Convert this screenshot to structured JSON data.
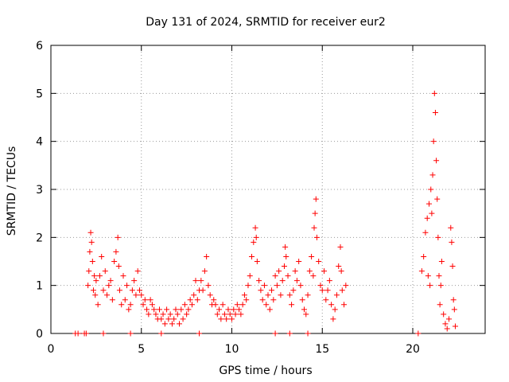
{
  "chart_data": {
    "type": "scatter",
    "title": "Day 131 of 2024, SRMTID for receiver eur2",
    "xlabel": "GPS time / hours",
    "ylabel": "SRMTID / TECUs",
    "xlim": [
      0,
      24
    ],
    "ylim": [
      0,
      6
    ],
    "xticks": [
      0,
      5,
      10,
      15,
      20
    ],
    "yticks": [
      0,
      1,
      2,
      3,
      4,
      5,
      6
    ],
    "grid": true,
    "marker": "+",
    "series": [
      {
        "name": "SRMTID",
        "color": "#ff0000",
        "points": [
          [
            1.35,
            0
          ],
          [
            1.5,
            0
          ],
          [
            1.85,
            0
          ],
          [
            1.95,
            0
          ],
          [
            2.9,
            0
          ],
          [
            4.4,
            0
          ],
          [
            6.1,
            0
          ],
          [
            8.2,
            0
          ],
          [
            12.4,
            0
          ],
          [
            13.2,
            0
          ],
          [
            14.2,
            0
          ],
          [
            20.3,
            0
          ],
          [
            2.05,
            1.0
          ],
          [
            2.1,
            1.3
          ],
          [
            2.15,
            1.7
          ],
          [
            2.2,
            2.1
          ],
          [
            2.25,
            1.9
          ],
          [
            2.3,
            1.5
          ],
          [
            2.35,
            0.9
          ],
          [
            2.4,
            1.2
          ],
          [
            2.45,
            0.8
          ],
          [
            2.5,
            1.1
          ],
          [
            2.6,
            0.6
          ],
          [
            2.7,
            1.2
          ],
          [
            2.8,
            1.6
          ],
          [
            2.9,
            0.9
          ],
          [
            3.0,
            1.3
          ],
          [
            3.1,
            0.8
          ],
          [
            3.2,
            1.0
          ],
          [
            3.3,
            1.1
          ],
          [
            3.4,
            0.7
          ],
          [
            3.5,
            1.5
          ],
          [
            3.6,
            1.7
          ],
          [
            3.7,
            2.0
          ],
          [
            3.75,
            1.4
          ],
          [
            3.8,
            0.9
          ],
          [
            3.9,
            0.6
          ],
          [
            4.0,
            1.2
          ],
          [
            4.1,
            0.7
          ],
          [
            4.2,
            1.0
          ],
          [
            4.3,
            0.5
          ],
          [
            4.4,
            0.6
          ],
          [
            4.5,
            0.9
          ],
          [
            4.6,
            1.1
          ],
          [
            4.7,
            0.8
          ],
          [
            4.8,
            1.3
          ],
          [
            4.9,
            0.9
          ],
          [
            5.0,
            0.8
          ],
          [
            5.1,
            0.6
          ],
          [
            5.2,
            0.7
          ],
          [
            5.3,
            0.5
          ],
          [
            5.4,
            0.4
          ],
          [
            5.5,
            0.7
          ],
          [
            5.6,
            0.6
          ],
          [
            5.7,
            0.5
          ],
          [
            5.8,
            0.4
          ],
          [
            5.9,
            0.3
          ],
          [
            6.0,
            0.5
          ],
          [
            6.1,
            0.3
          ],
          [
            6.2,
            0.4
          ],
          [
            6.3,
            0.2
          ],
          [
            6.4,
            0.5
          ],
          [
            6.5,
            0.3
          ],
          [
            6.6,
            0.4
          ],
          [
            6.7,
            0.2
          ],
          [
            6.8,
            0.3
          ],
          [
            6.9,
            0.5
          ],
          [
            7.0,
            0.4
          ],
          [
            7.1,
            0.2
          ],
          [
            7.2,
            0.5
          ],
          [
            7.3,
            0.3
          ],
          [
            7.4,
            0.6
          ],
          [
            7.5,
            0.4
          ],
          [
            7.6,
            0.5
          ],
          [
            7.7,
            0.7
          ],
          [
            7.8,
            0.6
          ],
          [
            7.9,
            0.8
          ],
          [
            8.0,
            1.1
          ],
          [
            8.1,
            0.7
          ],
          [
            8.2,
            0.9
          ],
          [
            8.3,
            1.1
          ],
          [
            8.4,
            0.9
          ],
          [
            8.5,
            1.3
          ],
          [
            8.6,
            1.6
          ],
          [
            8.7,
            1.0
          ],
          [
            8.8,
            0.8
          ],
          [
            8.9,
            0.6
          ],
          [
            9.0,
            0.7
          ],
          [
            9.1,
            0.6
          ],
          [
            9.2,
            0.4
          ],
          [
            9.3,
            0.5
          ],
          [
            9.4,
            0.3
          ],
          [
            9.5,
            0.6
          ],
          [
            9.6,
            0.4
          ],
          [
            9.7,
            0.3
          ],
          [
            9.8,
            0.5
          ],
          [
            9.9,
            0.4
          ],
          [
            10.0,
            0.3
          ],
          [
            10.1,
            0.5
          ],
          [
            10.2,
            0.4
          ],
          [
            10.3,
            0.6
          ],
          [
            10.4,
            0.5
          ],
          [
            10.5,
            0.4
          ],
          [
            10.6,
            0.6
          ],
          [
            10.7,
            0.8
          ],
          [
            10.8,
            0.7
          ],
          [
            10.9,
            1.0
          ],
          [
            11.0,
            1.2
          ],
          [
            11.1,
            1.6
          ],
          [
            11.2,
            1.9
          ],
          [
            11.3,
            2.2
          ],
          [
            11.35,
            2.0
          ],
          [
            11.4,
            1.5
          ],
          [
            11.5,
            1.1
          ],
          [
            11.6,
            0.9
          ],
          [
            11.7,
            0.7
          ],
          [
            11.8,
            1.0
          ],
          [
            11.9,
            0.6
          ],
          [
            12.0,
            0.8
          ],
          [
            12.1,
            0.5
          ],
          [
            12.2,
            0.9
          ],
          [
            12.3,
            0.7
          ],
          [
            12.4,
            1.2
          ],
          [
            12.5,
            1.0
          ],
          [
            12.6,
            1.3
          ],
          [
            12.7,
            0.8
          ],
          [
            12.8,
            1.1
          ],
          [
            12.9,
            1.4
          ],
          [
            12.95,
            1.8
          ],
          [
            13.0,
            1.6
          ],
          [
            13.1,
            1.2
          ],
          [
            13.2,
            0.8
          ],
          [
            13.3,
            0.6
          ],
          [
            13.4,
            0.9
          ],
          [
            13.5,
            1.3
          ],
          [
            13.6,
            1.1
          ],
          [
            13.7,
            1.5
          ],
          [
            13.8,
            1.0
          ],
          [
            13.9,
            0.7
          ],
          [
            14.0,
            0.5
          ],
          [
            14.1,
            0.4
          ],
          [
            14.2,
            0.8
          ],
          [
            14.3,
            1.3
          ],
          [
            14.4,
            1.6
          ],
          [
            14.5,
            1.2
          ],
          [
            14.55,
            2.2
          ],
          [
            14.6,
            2.5
          ],
          [
            14.65,
            2.8
          ],
          [
            14.7,
            2.0
          ],
          [
            14.8,
            1.5
          ],
          [
            14.9,
            1.0
          ],
          [
            15.0,
            0.9
          ],
          [
            15.1,
            1.3
          ],
          [
            15.2,
            0.7
          ],
          [
            15.3,
            0.9
          ],
          [
            15.4,
            1.1
          ],
          [
            15.5,
            0.6
          ],
          [
            15.6,
            0.3
          ],
          [
            15.7,
            0.5
          ],
          [
            15.8,
            0.8
          ],
          [
            15.9,
            1.4
          ],
          [
            16.0,
            1.8
          ],
          [
            16.05,
            1.3
          ],
          [
            16.1,
            0.9
          ],
          [
            16.2,
            0.6
          ],
          [
            16.3,
            1.0
          ],
          [
            20.5,
            1.3
          ],
          [
            20.6,
            1.6
          ],
          [
            20.7,
            2.1
          ],
          [
            20.8,
            2.4
          ],
          [
            20.85,
            1.2
          ],
          [
            20.9,
            2.7
          ],
          [
            20.95,
            1.0
          ],
          [
            21.0,
            3.0
          ],
          [
            21.05,
            2.5
          ],
          [
            21.1,
            3.3
          ],
          [
            21.15,
            4.0
          ],
          [
            21.2,
            5.0
          ],
          [
            21.25,
            4.6
          ],
          [
            21.3,
            3.6
          ],
          [
            21.35,
            2.8
          ],
          [
            21.4,
            2.0
          ],
          [
            21.45,
            1.2
          ],
          [
            21.5,
            0.6
          ],
          [
            21.55,
            1.0
          ],
          [
            21.6,
            1.5
          ],
          [
            21.7,
            0.4
          ],
          [
            21.8,
            0.2
          ],
          [
            21.9,
            0.1
          ],
          [
            22.0,
            0.3
          ],
          [
            22.1,
            2.2
          ],
          [
            22.15,
            1.9
          ],
          [
            22.2,
            1.4
          ],
          [
            22.25,
            0.7
          ],
          [
            22.3,
            0.5
          ],
          [
            22.35,
            0.15
          ]
        ]
      }
    ]
  }
}
